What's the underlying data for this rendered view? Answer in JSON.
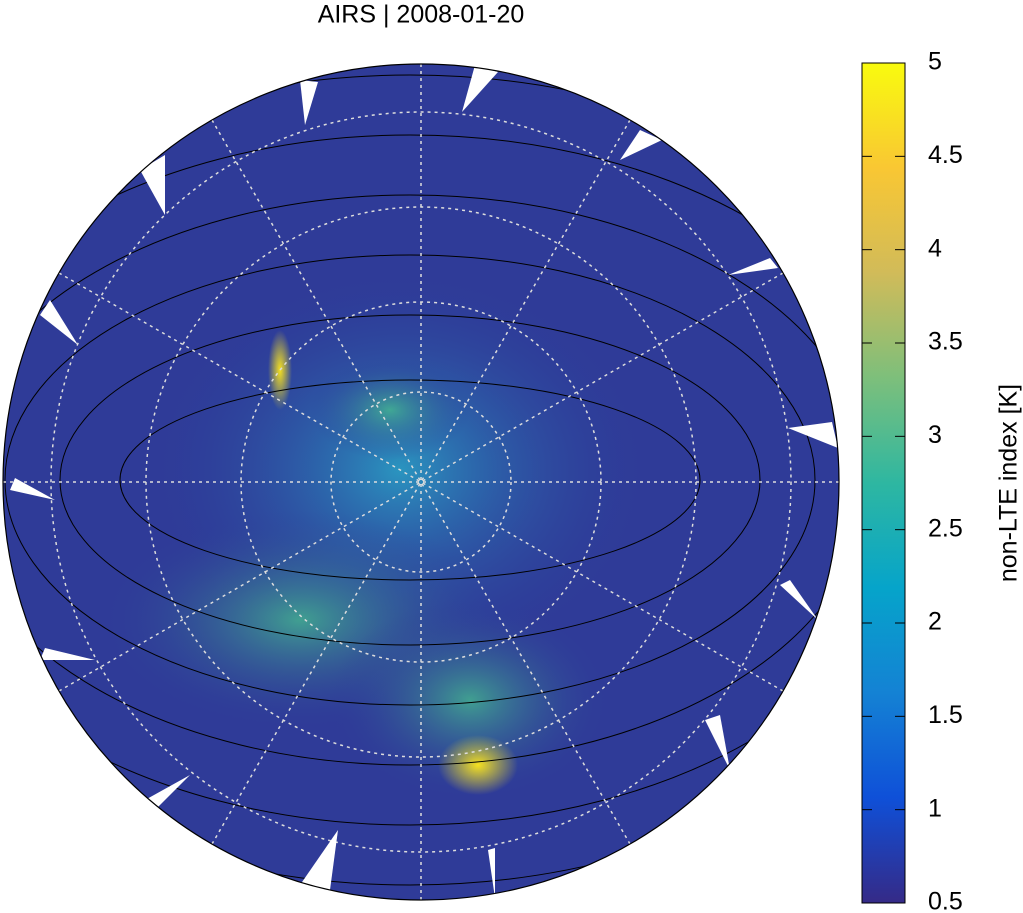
{
  "title": "AIRS | 2008-01-20",
  "colorbar": {
    "label": "non-LTE index [K]",
    "clim": [
      0.5,
      5
    ],
    "ticks": [
      0.5,
      1,
      1.5,
      2,
      2.5,
      3,
      3.5,
      4,
      4.5,
      5
    ]
  }
}
